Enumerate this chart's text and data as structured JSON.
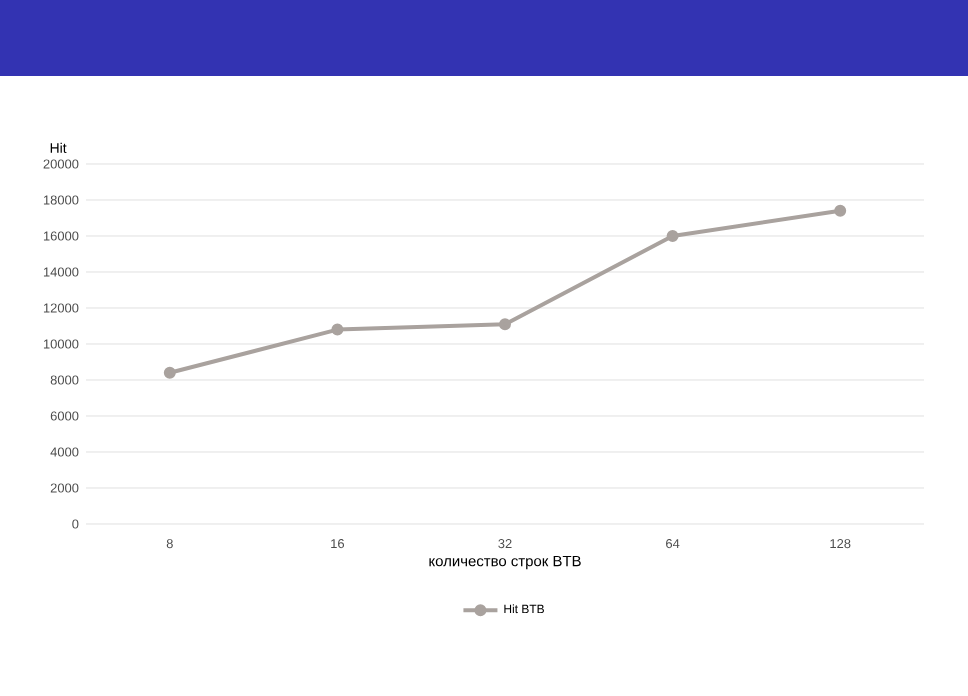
{
  "chart_data": {
    "type": "line",
    "xlabel": "количество строк BTB",
    "ylabel": "Hit",
    "categories": [
      "8",
      "16",
      "32",
      "64",
      "128"
    ],
    "series": [
      {
        "name": "Hit BTB",
        "color": "#a9a29e",
        "values": [
          8400,
          10800,
          11100,
          16000,
          17400
        ]
      }
    ],
    "ylim": [
      0,
      20000
    ],
    "yticks": [
      0,
      2000,
      4000,
      6000,
      8000,
      10000,
      12000,
      14000,
      16000,
      18000,
      20000
    ],
    "grid": "y",
    "legend": "bottom",
    "marker": "circle",
    "line_style": "solid"
  }
}
